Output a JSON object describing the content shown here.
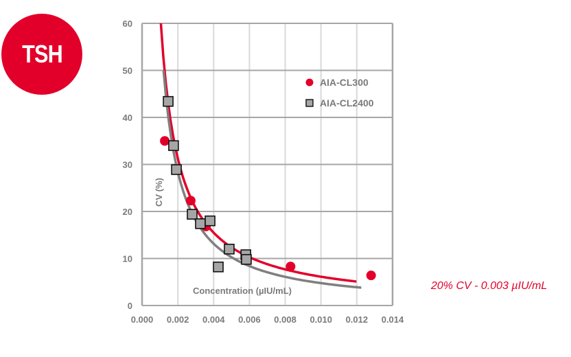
{
  "badge": {
    "label": "TSH",
    "color": "#e2002a"
  },
  "note": "20% CV - 0.003 µIU/mL",
  "colors": {
    "red": "#e2002a",
    "gray": "#7f7f7f",
    "marker_gray": "#a6a6a6",
    "grid": "#d9d9d9",
    "axis": "#a6a6a6",
    "text": "#7a7a7a"
  },
  "chart_data": {
    "type": "scatter",
    "title": "TSH",
    "xlabel": "Concentration (µIU/mL)",
    "ylabel": "CV (%)",
    "xlim": [
      0,
      0.014
    ],
    "ylim": [
      0,
      60
    ],
    "x_ticks": [
      "0.000",
      "0.002",
      "0.004",
      "0.006",
      "0.008",
      "0.010",
      "0.012",
      "0.014"
    ],
    "y_ticks": [
      "0",
      "10",
      "20",
      "30",
      "40",
      "50",
      "60"
    ],
    "grid": true,
    "legend_position": "upper right",
    "annotation": "20% CV - 0.003 µIU/mL",
    "series": [
      {
        "name": "AIA-CL300",
        "marker": "circle",
        "color": "#e2002a",
        "x": [
          0.00127,
          0.00272,
          0.00357,
          0.0083,
          0.0128
        ],
        "y": [
          35.0,
          22.3,
          16.8,
          8.3,
          6.4
        ],
        "trendline": {
          "x_range": [
            0.00105,
            0.01198
          ],
          "y_at_start": 60
        }
      },
      {
        "name": "AIA-CL2400",
        "marker": "square",
        "color": "#a6a6a6",
        "x": [
          0.00146,
          0.00176,
          0.00192,
          0.0028,
          0.00326,
          0.0038,
          0.00426,
          0.00487,
          0.0058,
          0.00583
        ],
        "y": [
          43.4,
          34.0,
          28.9,
          19.4,
          17.4,
          18.0,
          8.2,
          12.0,
          10.8,
          9.8
        ],
        "trendline": {
          "x_range": [
            0.0012,
            0.01225
          ],
          "y_at_start": 50
        }
      }
    ]
  }
}
